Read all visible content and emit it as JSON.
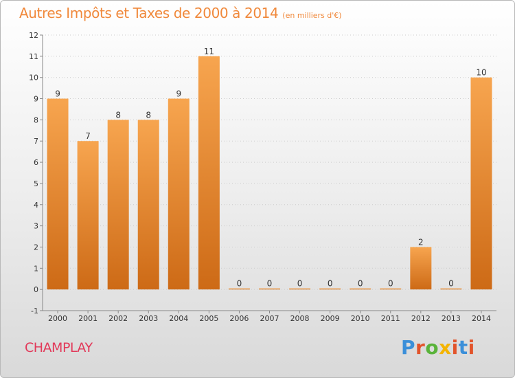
{
  "header": {
    "title": "Autres Impôts et Taxes de 2000 à 2014",
    "unit": "(en milliers d'€)"
  },
  "footer": {
    "commune": "CHAMPLAY",
    "logo": "Proxiti",
    "logo_colors": [
      "#3b8fd9",
      "#e2542b",
      "#59b33a",
      "#f4b400",
      "#e2542b",
      "#3b8fd9",
      "#e2542b"
    ]
  },
  "colors": {
    "bar_top": "#f7a54f",
    "bar_bottom": "#cd6a16",
    "axis": "#888888",
    "grid": "#cccccc",
    "text": "#333333",
    "accent": "#f0883a"
  },
  "chart_data": {
    "type": "bar",
    "title": "Autres Impôts et Taxes de 2000 à 2014",
    "subtitle": "(en milliers d'€)",
    "categories": [
      "2000",
      "2001",
      "2002",
      "2003",
      "2004",
      "2005",
      "2006",
      "2007",
      "2008",
      "2009",
      "2010",
      "2011",
      "2012",
      "2013",
      "2014"
    ],
    "values": [
      9,
      7,
      8,
      8,
      9,
      11,
      0,
      0,
      0,
      0,
      0,
      0,
      2,
      0,
      10
    ],
    "ylim": [
      -1,
      12
    ],
    "yticks": [
      -1,
      0,
      1,
      2,
      3,
      4,
      5,
      6,
      7,
      8,
      9,
      10,
      11,
      12
    ],
    "grid": true,
    "legend": "none"
  }
}
